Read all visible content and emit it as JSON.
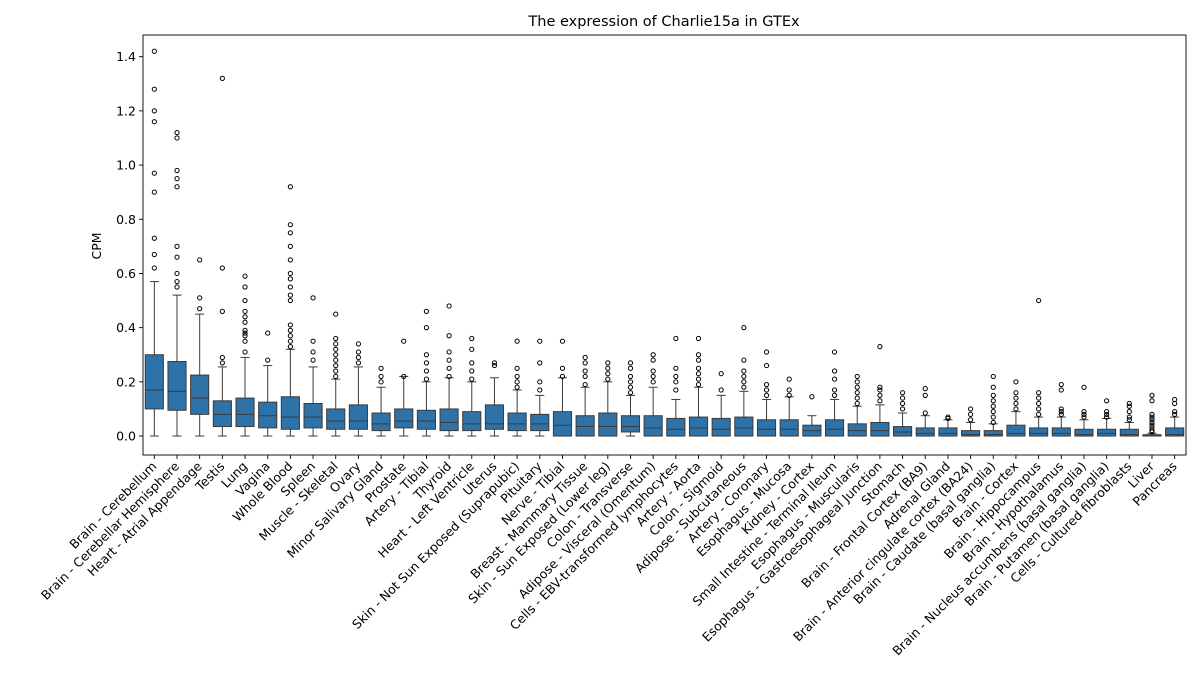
{
  "chart_data": {
    "type": "box",
    "title": "The expression of Charlie15a in GTEx",
    "xlabel": "",
    "ylabel": "CPM",
    "ylim": [
      -0.07,
      1.48
    ],
    "yticks": [
      0.0,
      0.2,
      0.4,
      0.6,
      0.8,
      1.0,
      1.2,
      1.4
    ],
    "ytick_labels": [
      "0.0",
      "0.2",
      "0.4",
      "0.6",
      "0.8",
      "1.0",
      "1.2",
      "1.4"
    ],
    "grid": false,
    "legend": "none",
    "box_color": "#2e72a8",
    "categories": [
      "Brain - Cerebellum",
      "Brain - Cerebellar Hemisphere",
      "Heart - Atrial Appendage",
      "Testis",
      "Lung",
      "Vagina",
      "Whole Blood",
      "Spleen",
      "Muscle - Skeletal",
      "Ovary",
      "Minor Salivary Gland",
      "Prostate",
      "Artery - Tibial",
      "Thyroid",
      "Heart - Left Ventricle",
      "Uterus",
      "Skin - Not Sun Exposed (Suprapubic)",
      "Pituitary",
      "Nerve - Tibial",
      "Breast - Mammary Tissue",
      "Skin - Sun Exposed (Lower leg)",
      "Colon - Transverse",
      "Adipose - Visceral (Omentum)",
      "Cells - EBV-transformed lymphocytes",
      "Artery - Aorta",
      "Colon - Sigmoid",
      "Adipose - Subcutaneous",
      "Artery - Coronary",
      "Esophagus - Mucosa",
      "Kidney - Cortex",
      "Small Intestine - Terminal Ileum",
      "Esophagus - Muscularis",
      "Esophagus - Gastroesophageal Junction",
      "Stomach",
      "Brain - Frontal Cortex (BA9)",
      "Adrenal Gland",
      "Brain - Anterior cingulate cortex (BA24)",
      "Brain - Caudate (basal ganglia)",
      "Brain - Cortex",
      "Brain - Hippocampus",
      "Brain - Hypothalamus",
      "Brain - Nucleus accumbens (basal ganglia)",
      "Brain - Putamen (basal ganglia)",
      "Cells - Cultured fibroblasts",
      "Liver",
      "Pancreas"
    ],
    "boxes": [
      {
        "whislo": 0.0,
        "q1": 0.1,
        "med": 0.17,
        "q3": 0.3,
        "whishi": 0.57,
        "fliers": [
          0.62,
          0.67,
          0.73,
          0.9,
          0.97,
          1.16,
          1.2,
          1.28,
          1.42
        ]
      },
      {
        "whislo": 0.0,
        "q1": 0.095,
        "med": 0.165,
        "q3": 0.275,
        "whishi": 0.52,
        "fliers": [
          0.55,
          0.57,
          0.6,
          0.66,
          0.7,
          0.92,
          0.95,
          0.98,
          1.1,
          1.12
        ]
      },
      {
        "whislo": 0.0,
        "q1": 0.08,
        "med": 0.14,
        "q3": 0.225,
        "whishi": 0.45,
        "fliers": [
          0.47,
          0.51,
          0.65
        ]
      },
      {
        "whislo": 0.0,
        "q1": 0.035,
        "med": 0.08,
        "q3": 0.13,
        "whishi": 0.255,
        "fliers": [
          0.27,
          0.29,
          0.46,
          0.62,
          1.32
        ]
      },
      {
        "whislo": 0.0,
        "q1": 0.035,
        "med": 0.08,
        "q3": 0.14,
        "whishi": 0.29,
        "fliers": [
          0.31,
          0.35,
          0.37,
          0.38,
          0.39,
          0.42,
          0.44,
          0.46,
          0.5,
          0.55,
          0.59
        ]
      },
      {
        "whislo": 0.0,
        "q1": 0.03,
        "med": 0.075,
        "q3": 0.125,
        "whishi": 0.26,
        "fliers": [
          0.28,
          0.38
        ]
      },
      {
        "whislo": 0.0,
        "q1": 0.025,
        "med": 0.07,
        "q3": 0.145,
        "whishi": 0.32,
        "fliers": [
          0.33,
          0.35,
          0.37,
          0.39,
          0.41,
          0.5,
          0.52,
          0.55,
          0.58,
          0.6,
          0.65,
          0.7,
          0.75,
          0.78,
          0.92
        ]
      },
      {
        "whislo": 0.0,
        "q1": 0.03,
        "med": 0.07,
        "q3": 0.12,
        "whishi": 0.255,
        "fliers": [
          0.28,
          0.31,
          0.35,
          0.51
        ]
      },
      {
        "whislo": 0.0,
        "q1": 0.025,
        "med": 0.055,
        "q3": 0.1,
        "whishi": 0.21,
        "fliers": [
          0.22,
          0.24,
          0.26,
          0.28,
          0.3,
          0.32,
          0.34,
          0.36,
          0.45
        ]
      },
      {
        "whislo": 0.0,
        "q1": 0.025,
        "med": 0.055,
        "q3": 0.115,
        "whishi": 0.255,
        "fliers": [
          0.27,
          0.29,
          0.31,
          0.34
        ]
      },
      {
        "whislo": 0.0,
        "q1": 0.02,
        "med": 0.045,
        "q3": 0.085,
        "whishi": 0.18,
        "fliers": [
          0.2,
          0.22,
          0.25
        ]
      },
      {
        "whislo": 0.0,
        "q1": 0.03,
        "med": 0.055,
        "q3": 0.1,
        "whishi": 0.22,
        "fliers": [
          0.22,
          0.35
        ]
      },
      {
        "whislo": 0.0,
        "q1": 0.025,
        "med": 0.055,
        "q3": 0.095,
        "whishi": 0.2,
        "fliers": [
          0.21,
          0.24,
          0.27,
          0.3,
          0.4,
          0.46
        ]
      },
      {
        "whislo": 0.0,
        "q1": 0.02,
        "med": 0.05,
        "q3": 0.1,
        "whishi": 0.215,
        "fliers": [
          0.22,
          0.25,
          0.28,
          0.31,
          0.37,
          0.48
        ]
      },
      {
        "whislo": 0.0,
        "q1": 0.02,
        "med": 0.045,
        "q3": 0.09,
        "whishi": 0.2,
        "fliers": [
          0.21,
          0.24,
          0.27,
          0.32,
          0.36
        ]
      },
      {
        "whislo": 0.0,
        "q1": 0.025,
        "med": 0.045,
        "q3": 0.115,
        "whishi": 0.215,
        "fliers": [
          0.26,
          0.27
        ]
      },
      {
        "whislo": 0.0,
        "q1": 0.02,
        "med": 0.045,
        "q3": 0.085,
        "whishi": 0.17,
        "fliers": [
          0.18,
          0.2,
          0.22,
          0.25,
          0.35
        ]
      },
      {
        "whislo": 0.0,
        "q1": 0.02,
        "med": 0.045,
        "q3": 0.08,
        "whishi": 0.15,
        "fliers": [
          0.17,
          0.2,
          0.27,
          0.35
        ]
      },
      {
        "whislo": 0.0,
        "q1": 0.0,
        "med": 0.04,
        "q3": 0.09,
        "whishi": 0.215,
        "fliers": [
          0.22,
          0.25,
          0.35
        ]
      },
      {
        "whislo": 0.0,
        "q1": 0.0,
        "med": 0.035,
        "q3": 0.075,
        "whishi": 0.18,
        "fliers": [
          0.19,
          0.22,
          0.24,
          0.27,
          0.29
        ]
      },
      {
        "whislo": 0.0,
        "q1": 0.0,
        "med": 0.035,
        "q3": 0.085,
        "whishi": 0.2,
        "fliers": [
          0.21,
          0.23,
          0.25,
          0.27
        ]
      },
      {
        "whislo": 0.0,
        "q1": 0.015,
        "med": 0.035,
        "q3": 0.075,
        "whishi": 0.15,
        "fliers": [
          0.16,
          0.18,
          0.2,
          0.22,
          0.25,
          0.27
        ]
      },
      {
        "whislo": 0.0,
        "q1": 0.0,
        "med": 0.03,
        "q3": 0.075,
        "whishi": 0.18,
        "fliers": [
          0.2,
          0.22,
          0.24,
          0.28,
          0.3
        ]
      },
      {
        "whislo": 0.0,
        "q1": 0.0,
        "med": 0.025,
        "q3": 0.065,
        "whishi": 0.135,
        "fliers": [
          0.17,
          0.2,
          0.22,
          0.25,
          0.36
        ]
      },
      {
        "whislo": 0.0,
        "q1": 0.0,
        "med": 0.03,
        "q3": 0.07,
        "whishi": 0.18,
        "fliers": [
          0.19,
          0.21,
          0.23,
          0.25,
          0.28,
          0.3,
          0.36
        ]
      },
      {
        "whislo": 0.0,
        "q1": 0.0,
        "med": 0.025,
        "q3": 0.065,
        "whishi": 0.15,
        "fliers": [
          0.17,
          0.23
        ]
      },
      {
        "whislo": 0.0,
        "q1": 0.0,
        "med": 0.03,
        "q3": 0.07,
        "whishi": 0.165,
        "fliers": [
          0.18,
          0.2,
          0.22,
          0.24,
          0.28,
          0.4
        ]
      },
      {
        "whislo": 0.0,
        "q1": 0.0,
        "med": 0.025,
        "q3": 0.06,
        "whishi": 0.135,
        "fliers": [
          0.15,
          0.17,
          0.19,
          0.26,
          0.31
        ]
      },
      {
        "whislo": 0.0,
        "q1": 0.0,
        "med": 0.025,
        "q3": 0.06,
        "whishi": 0.145,
        "fliers": [
          0.15,
          0.17,
          0.21
        ]
      },
      {
        "whislo": 0.0,
        "q1": 0.0,
        "med": 0.02,
        "q3": 0.04,
        "whishi": 0.075,
        "fliers": [
          0.145
        ]
      },
      {
        "whislo": 0.0,
        "q1": 0.0,
        "med": 0.025,
        "q3": 0.06,
        "whishi": 0.135,
        "fliers": [
          0.15,
          0.17,
          0.21,
          0.24,
          0.31
        ]
      },
      {
        "whislo": 0.0,
        "q1": 0.0,
        "med": 0.02,
        "q3": 0.045,
        "whishi": 0.11,
        "fliers": [
          0.12,
          0.14,
          0.16,
          0.18,
          0.2,
          0.22
        ]
      },
      {
        "whislo": 0.0,
        "q1": 0.0,
        "med": 0.02,
        "q3": 0.05,
        "whishi": 0.115,
        "fliers": [
          0.13,
          0.15,
          0.17,
          0.18,
          0.33
        ]
      },
      {
        "whislo": 0.0,
        "q1": 0.0,
        "med": 0.015,
        "q3": 0.035,
        "whishi": 0.085,
        "fliers": [
          0.1,
          0.12,
          0.14,
          0.16
        ]
      },
      {
        "whislo": 0.0,
        "q1": 0.0,
        "med": 0.01,
        "q3": 0.03,
        "whishi": 0.075,
        "fliers": [
          0.085,
          0.15,
          0.175
        ]
      },
      {
        "whislo": 0.0,
        "q1": 0.0,
        "med": 0.01,
        "q3": 0.03,
        "whishi": 0.06,
        "fliers": [
          0.065,
          0.07
        ]
      },
      {
        "whislo": 0.0,
        "q1": 0.0,
        "med": 0.005,
        "q3": 0.02,
        "whishi": 0.05,
        "fliers": [
          0.06,
          0.08,
          0.1
        ]
      },
      {
        "whislo": 0.0,
        "q1": 0.0,
        "med": 0.005,
        "q3": 0.02,
        "whishi": 0.045,
        "fliers": [
          0.05,
          0.07,
          0.09,
          0.11,
          0.13,
          0.15,
          0.18,
          0.22
        ]
      },
      {
        "whislo": 0.0,
        "q1": 0.0,
        "med": 0.01,
        "q3": 0.04,
        "whishi": 0.09,
        "fliers": [
          0.1,
          0.12,
          0.14,
          0.16,
          0.2
        ]
      },
      {
        "whislo": 0.0,
        "q1": 0.0,
        "med": 0.01,
        "q3": 0.03,
        "whishi": 0.07,
        "fliers": [
          0.08,
          0.1,
          0.12,
          0.14,
          0.16,
          0.5
        ]
      },
      {
        "whislo": 0.0,
        "q1": 0.0,
        "med": 0.01,
        "q3": 0.03,
        "whishi": 0.07,
        "fliers": [
          0.08,
          0.09,
          0.1,
          0.17,
          0.19
        ]
      },
      {
        "whislo": 0.0,
        "q1": 0.0,
        "med": 0.005,
        "q3": 0.025,
        "whishi": 0.06,
        "fliers": [
          0.07,
          0.08,
          0.09,
          0.18
        ]
      },
      {
        "whislo": 0.0,
        "q1": 0.0,
        "med": 0.01,
        "q3": 0.025,
        "whishi": 0.065,
        "fliers": [
          0.07,
          0.08,
          0.09,
          0.13
        ]
      },
      {
        "whislo": 0.0,
        "q1": 0.0,
        "med": 0.005,
        "q3": 0.025,
        "whishi": 0.05,
        "fliers": [
          0.06,
          0.07,
          0.09,
          0.11,
          0.12
        ]
      },
      {
        "whislo": 0.0,
        "q1": 0.0,
        "med": 0.0,
        "q3": 0.005,
        "whishi": 0.01,
        "fliers": [
          0.015,
          0.02,
          0.03,
          0.04,
          0.05,
          0.06,
          0.07,
          0.08,
          0.13,
          0.15
        ]
      },
      {
        "whislo": 0.0,
        "q1": 0.0,
        "med": 0.005,
        "q3": 0.03,
        "whishi": 0.07,
        "fliers": [
          0.08,
          0.09,
          0.12,
          0.135
        ]
      }
    ]
  }
}
